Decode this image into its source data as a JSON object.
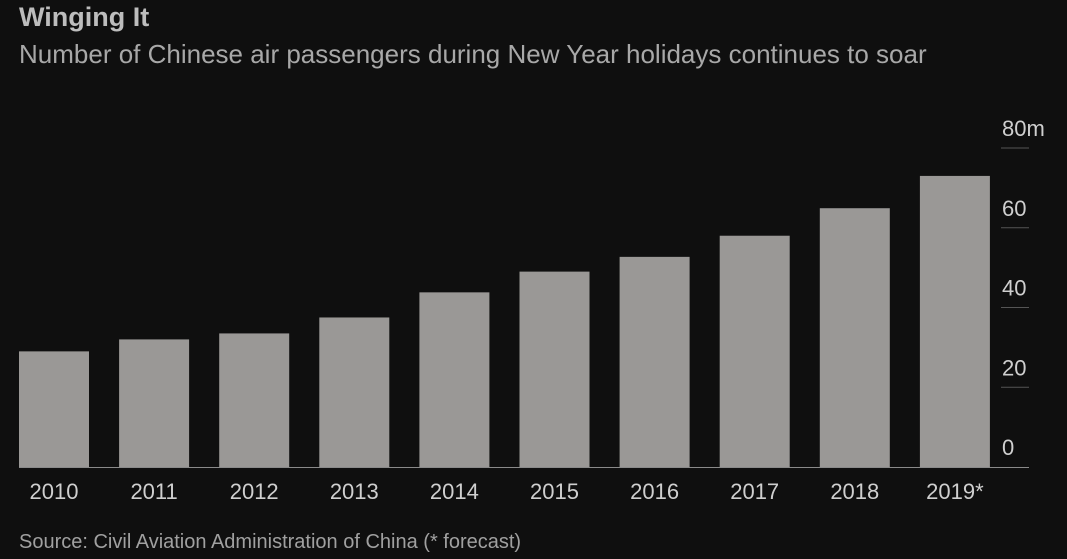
{
  "header": {
    "title": "Winging It",
    "subtitle": "Number of Chinese air passengers during New Year holidays continues to soar"
  },
  "footer": {
    "source": "Source: Civil Aviation Administration of China (* forecast)"
  },
  "colors": {
    "background": "#0f0f0f",
    "bar": "#9a9896",
    "text": "#cfcfcf",
    "gridline": "#555555"
  },
  "chart_data": {
    "type": "bar",
    "title": "Winging It",
    "subtitle": "Number of Chinese air passengers during New Year holidays continues to soar",
    "xlabel": "",
    "ylabel": "",
    "categories": [
      "2010",
      "2011",
      "2012",
      "2013",
      "2014",
      "2015",
      "2016",
      "2017",
      "2018",
      "2019*"
    ],
    "values": [
      29,
      32,
      33.5,
      37.5,
      43.8,
      49,
      52.7,
      58,
      64.9,
      73
    ],
    "ylim": [
      0,
      80
    ],
    "yticks": [
      0,
      20,
      40,
      60,
      80
    ],
    "ytick_labels": [
      "0",
      "20",
      "40",
      "60",
      "80m"
    ],
    "y_axis_position": "right",
    "grid": false,
    "legend": "none"
  }
}
